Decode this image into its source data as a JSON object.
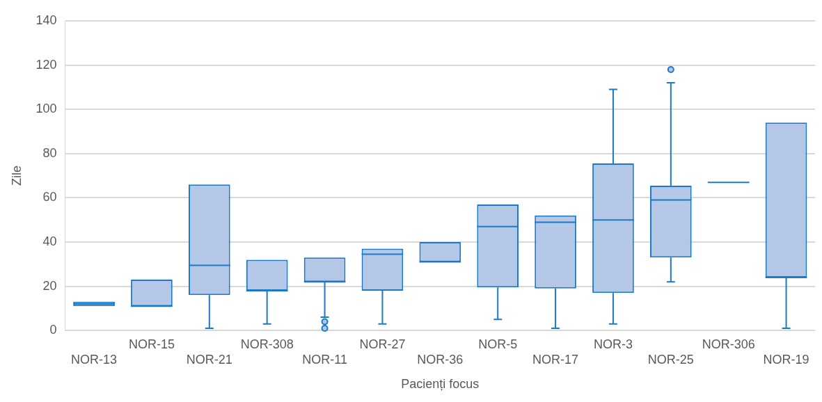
{
  "chart_data": {
    "type": "box",
    "xlabel": "Pacienți focus",
    "ylabel": "Zile",
    "categories": [
      "NOR-13",
      "NOR-15",
      "NOR-21",
      "NOR-308",
      "NOR-11",
      "NOR-27",
      "NOR-36",
      "NOR-5",
      "NOR-17",
      "NOR-3",
      "NOR-25",
      "NOR-306",
      "NOR-19"
    ],
    "series": [
      {
        "color": "#1a7ac8",
        "boxes": [
          {
            "low": 11,
            "q1": 11,
            "median": 12,
            "q3": 13,
            "high": 13
          },
          {
            "low": 11,
            "q1": 11,
            "median": 11,
            "q3": 23,
            "high": 23
          },
          {
            "low": 1,
            "q1": 16,
            "median": 29.5,
            "q3": 66,
            "high": 66
          },
          {
            "low": 3,
            "q1": 18,
            "median": 18,
            "q3": 32,
            "high": 32
          },
          {
            "low": 6,
            "q1": 22,
            "median": 22,
            "q3": 33,
            "high": 33,
            "outliers": [
              4,
              1
            ]
          },
          {
            "low": 3,
            "q1": 18,
            "median": 34.5,
            "q3": 37,
            "high": 37
          },
          {
            "low": 31,
            "q1": 31,
            "median": 31,
            "q3": 40,
            "high": 40
          },
          {
            "low": 5,
            "q1": 19.5,
            "median": 47,
            "q3": 57,
            "high": 57
          },
          {
            "low": 1,
            "q1": 19,
            "median": 49,
            "q3": 52,
            "high": 52
          },
          {
            "low": 3,
            "q1": 17,
            "median": 50,
            "q3": 75.5,
            "high": 109
          },
          {
            "low": 22,
            "q1": 33,
            "median": 59,
            "q3": 65.5,
            "high": 112,
            "outliers": [
              118
            ]
          },
          {
            "low": 67,
            "q1": 67,
            "median": 67,
            "q3": 67,
            "high": 67
          },
          {
            "low": 1,
            "q1": 24,
            "median": 24,
            "q3": 94,
            "high": 94
          }
        ]
      }
    ],
    "ylim": [
      0,
      140
    ],
    "yticks": [
      0,
      20,
      40,
      60,
      80,
      100,
      120,
      140
    ],
    "grid": "y",
    "legend": false
  }
}
